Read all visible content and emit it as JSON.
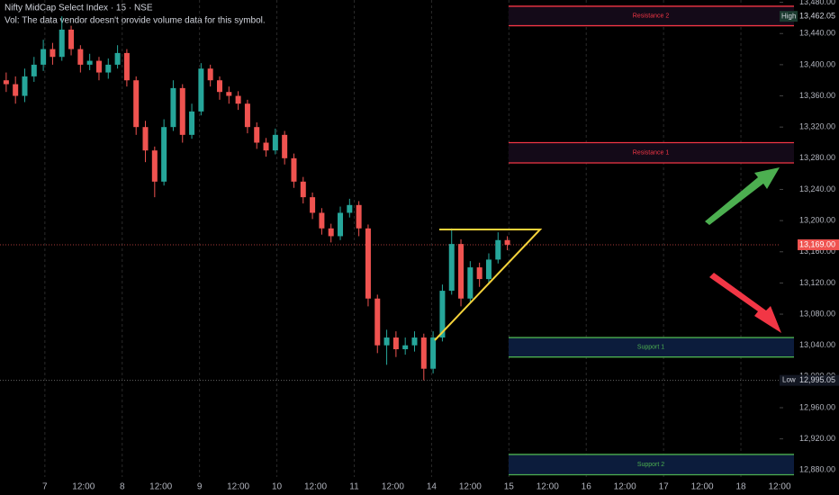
{
  "chart_data": {
    "type": "candlestick",
    "title": "Nifty MidCap Select Index · 15 · NSE",
    "subtitle": "Vol: The data vendor doesn't provide volume data for this symbol.",
    "up_color": "#26a69a",
    "down_color": "#ef5350",
    "x": [
      -0.5,
      -0.38,
      -0.26,
      -0.14,
      -0.02,
      0.1,
      0.22,
      0.34,
      0.46,
      0.58,
      0.7,
      0.82,
      0.94,
      1.06,
      1.18,
      1.3,
      1.42,
      1.54,
      1.66,
      1.78,
      1.9,
      2.02,
      2.14,
      2.26,
      2.38,
      2.5,
      2.62,
      2.74,
      2.86,
      2.98,
      3.1,
      3.22,
      3.34,
      3.46,
      3.58,
      3.7,
      3.82,
      3.94,
      4.06,
      4.18,
      4.3,
      4.42,
      4.54,
      4.66,
      4.78,
      4.9,
      5.02,
      5.14,
      5.26,
      5.38,
      5.5,
      5.62,
      5.74,
      5.86,
      5.98
    ],
    "open": [
      13380,
      13375,
      13360,
      13385,
      13400,
      13420,
      13410,
      13445,
      13420,
      13400,
      13405,
      13390,
      13400,
      13415,
      13380,
      13320,
      13290,
      13250,
      13320,
      13370,
      13310,
      13340,
      13395,
      13380,
      13365,
      13360,
      13350,
      13320,
      13300,
      13290,
      13310,
      13280,
      13250,
      13230,
      13210,
      13190,
      13180,
      13210,
      13220,
      13190,
      13100,
      13040,
      13050,
      13035,
      13040,
      13050,
      13010,
      13050,
      13110,
      13170,
      13100,
      13140,
      13125,
      13150,
      13175
    ],
    "high": [
      13390,
      13385,
      13395,
      13410,
      13432,
      13428,
      13462.05,
      13450,
      13425,
      13414,
      13410,
      13408,
      13425,
      13420,
      13385,
      13328,
      13295,
      13330,
      13380,
      13375,
      13350,
      13402,
      13400,
      13385,
      13372,
      13366,
      13355,
      13326,
      13306,
      13318,
      13315,
      13286,
      13256,
      13236,
      13216,
      13196,
      13218,
      13228,
      13225,
      13195,
      13105,
      13060,
      13058,
      13050,
      13058,
      13055,
      13058,
      13118,
      13190,
      13176,
      13148,
      13146,
      13158,
      13185,
      13180
    ],
    "low": [
      13365,
      13350,
      13352,
      13378,
      13392,
      13400,
      13405,
      13412,
      13390,
      13393,
      13380,
      13382,
      13395,
      13372,
      13310,
      13275,
      13230,
      13245,
      13315,
      13300,
      13305,
      13335,
      13372,
      13355,
      13350,
      13342,
      13312,
      13292,
      13282,
      13285,
      13272,
      13242,
      13222,
      13202,
      13182,
      13172,
      13175,
      13204,
      13180,
      13090,
      13030,
      13015,
      13025,
      13028,
      13032,
      12995.05,
      13004,
      13045,
      13105,
      13090,
      13095,
      13115,
      13118,
      13145,
      13162
    ],
    "close": [
      13375,
      13360,
      13385,
      13400,
      13420,
      13410,
      13445,
      13420,
      13400,
      13405,
      13390,
      13400,
      13415,
      13380,
      13320,
      13290,
      13250,
      13320,
      13370,
      13310,
      13340,
      13395,
      13380,
      13365,
      13360,
      13350,
      13320,
      13300,
      13290,
      13310,
      13280,
      13250,
      13230,
      13210,
      13190,
      13180,
      13210,
      13220,
      13190,
      13100,
      13040,
      13050,
      13035,
      13040,
      13050,
      13010,
      13050,
      13110,
      13170,
      13100,
      13140,
      13125,
      13150,
      13175,
      13169
    ],
    "xlim": [
      -0.58,
      9.5
    ],
    "xticks": [
      {
        "value": 0,
        "label": "7"
      },
      {
        "value": 0.5,
        "label": "12:00"
      },
      {
        "value": 1,
        "label": "8"
      },
      {
        "value": 1.5,
        "label": "12:00"
      },
      {
        "value": 2,
        "label": "9"
      },
      {
        "value": 2.5,
        "label": "12:00"
      },
      {
        "value": 3,
        "label": "10"
      },
      {
        "value": 3.5,
        "label": "12:00"
      },
      {
        "value": 4,
        "label": "11"
      },
      {
        "value": 4.5,
        "label": "12:00"
      },
      {
        "value": 5,
        "label": "14"
      },
      {
        "value": 5.5,
        "label": "12:00"
      },
      {
        "value": 6,
        "label": "15"
      },
      {
        "value": 6.5,
        "label": "12:00"
      },
      {
        "value": 7,
        "label": "16"
      },
      {
        "value": 7.5,
        "label": "12:00"
      },
      {
        "value": 8,
        "label": "17"
      },
      {
        "value": 8.5,
        "label": "12:00"
      },
      {
        "value": 9,
        "label": "18"
      },
      {
        "value": 9.5,
        "label": "12:00"
      }
    ],
    "ylim": [
      12848,
      13483
    ],
    "yticks": [
      {
        "value": 13480,
        "label": "13,480.00"
      },
      {
        "value": 13440,
        "label": "13,440.00"
      },
      {
        "value": 13400,
        "label": "13,400.00"
      },
      {
        "value": 13360,
        "label": "13,360.00"
      },
      {
        "value": 13320,
        "label": "13,320.00"
      },
      {
        "value": 13280,
        "label": "13,280.00"
      },
      {
        "value": 13240,
        "label": "13,240.00"
      },
      {
        "value": 13200,
        "label": "13,200.00"
      },
      {
        "value": 13160,
        "label": "13,160.00"
      },
      {
        "value": 13120,
        "label": "13,120.00"
      },
      {
        "value": 13080,
        "label": "13,080.00"
      },
      {
        "value": 13040,
        "label": "13,040.00"
      },
      {
        "value": 13000,
        "label": "13,000.00"
      },
      {
        "value": 12960,
        "label": "12,960.00"
      },
      {
        "value": 12920,
        "label": "12,920.00"
      },
      {
        "value": 12880,
        "label": "12,880.00"
      }
    ],
    "zones": [
      {
        "label": "Resistance 2",
        "low": 13450,
        "high": 13475,
        "color": "#f23645"
      },
      {
        "label": "Resistance 1",
        "low": 13274,
        "high": 13300,
        "color": "#f23645"
      },
      {
        "label": "Support 1",
        "low": 13025,
        "high": 13050,
        "color": "#4caf50"
      },
      {
        "label": "Support 2",
        "low": 12874,
        "high": 12900,
        "color": "#4caf50"
      }
    ],
    "high_marker": {
      "label": "High",
      "value": 13462.05,
      "value_label": "13,462.05"
    },
    "low_marker": {
      "label": "Low",
      "value": 12995.05,
      "value_label": "12,995.05"
    },
    "last_price": {
      "value": 13169,
      "value_label": "13,169.00"
    }
  }
}
